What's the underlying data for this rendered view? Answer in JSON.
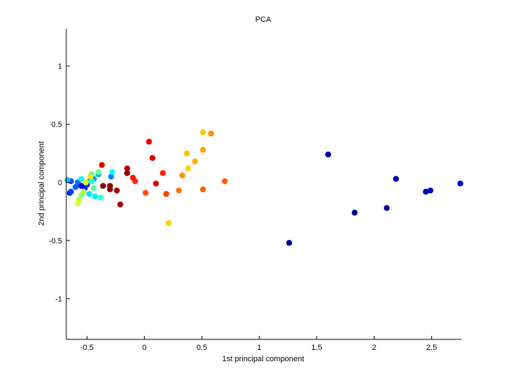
{
  "chart_data": {
    "type": "scatter",
    "title": "PCA",
    "xlabel": "1st principal component",
    "ylabel": "2nd principal component",
    "xlim": [
      -0.68,
      2.76
    ],
    "ylim": [
      -1.35,
      1.32
    ],
    "xticks": [
      -0.5,
      0,
      0.5,
      1,
      1.5,
      2,
      2.5
    ],
    "xtick_labels": [
      "-0.5",
      "0",
      "0.5",
      "1",
      "1.5",
      "2",
      "2.5"
    ],
    "yticks": [
      -1,
      -0.5,
      0,
      0.5,
      1
    ],
    "ytick_labels": [
      "-1",
      "-0.5",
      "0",
      "0.5",
      "1"
    ],
    "grid": false,
    "legend": "none",
    "points": [
      {
        "x": 1.26,
        "y": -0.52,
        "color": "#00009a"
      },
      {
        "x": 1.6,
        "y": 0.24,
        "color": "#00009a"
      },
      {
        "x": 1.83,
        "y": -0.26,
        "color": "#00009a"
      },
      {
        "x": 2.11,
        "y": -0.22,
        "color": "#00009a"
      },
      {
        "x": 2.19,
        "y": 0.03,
        "color": "#0000aa"
      },
      {
        "x": 2.45,
        "y": -0.08,
        "color": "#0000bb"
      },
      {
        "x": 2.49,
        "y": -0.07,
        "color": "#0000bb"
      },
      {
        "x": 2.75,
        "y": -0.01,
        "color": "#0000cc"
      },
      {
        "x": -0.65,
        "y": -0.09,
        "color": "#0020ff"
      },
      {
        "x": -0.64,
        "y": -0.08,
        "color": "#0040ff"
      },
      {
        "x": -0.64,
        "y": 0.01,
        "color": "#0050ff"
      },
      {
        "x": -0.6,
        "y": -0.04,
        "color": "#0060ff"
      },
      {
        "x": -0.58,
        "y": 0.0,
        "color": "#0070ff"
      },
      {
        "x": -0.55,
        "y": -0.03,
        "color": "#0000dd"
      },
      {
        "x": -0.52,
        "y": -0.05,
        "color": "#0000ee"
      },
      {
        "x": -0.5,
        "y": -0.02,
        "color": "#0030ff"
      },
      {
        "x": -0.47,
        "y": 0.02,
        "color": "#0090ff"
      },
      {
        "x": -0.44,
        "y": 0.03,
        "color": "#00a0ff"
      },
      {
        "x": -0.4,
        "y": 0.07,
        "color": "#00b0ff"
      },
      {
        "x": -0.29,
        "y": 0.05,
        "color": "#0080ff"
      },
      {
        "x": -0.67,
        "y": 0.02,
        "color": "#00d0ff"
      },
      {
        "x": -0.55,
        "y": 0.03,
        "color": "#10ffef"
      },
      {
        "x": -0.48,
        "y": -0.1,
        "color": "#00e0ff"
      },
      {
        "x": -0.46,
        "y": 0.01,
        "color": "#20ffdf"
      },
      {
        "x": -0.43,
        "y": -0.12,
        "color": "#00f0ff"
      },
      {
        "x": -0.38,
        "y": -0.13,
        "color": "#30ffcf"
      },
      {
        "x": -0.28,
        "y": 0.09,
        "color": "#00ffff"
      },
      {
        "x": -0.46,
        "y": 0.07,
        "color": "#50ffaf"
      },
      {
        "x": -0.44,
        "y": -0.05,
        "color": "#60ff9f"
      },
      {
        "x": -0.4,
        "y": 0.09,
        "color": "#70ff8f"
      },
      {
        "x": -0.55,
        "y": -0.11,
        "color": "#90ff6f"
      },
      {
        "x": -0.53,
        "y": -0.08,
        "color": "#b0ff4f"
      },
      {
        "x": -0.57,
        "y": -0.15,
        "color": "#c0ff3f"
      },
      {
        "x": -0.58,
        "y": -0.18,
        "color": "#d0ff2f"
      },
      {
        "x": -0.51,
        "y": 0.0,
        "color": "#e0ff1f"
      },
      {
        "x": -0.47,
        "y": 0.05,
        "color": "#ffe000"
      },
      {
        "x": 0.21,
        "y": -0.35,
        "color": "#ffd000"
      },
      {
        "x": 0.38,
        "y": 0.12,
        "color": "#ffd000"
      },
      {
        "x": 0.37,
        "y": 0.25,
        "color": "#ffc000"
      },
      {
        "x": 0.44,
        "y": 0.18,
        "color": "#ffb000"
      },
      {
        "x": 0.51,
        "y": 0.43,
        "color": "#ffc800"
      },
      {
        "x": 0.51,
        "y": 0.28,
        "color": "#ffa000"
      },
      {
        "x": 0.58,
        "y": 0.42,
        "color": "#ff9000"
      },
      {
        "x": 0.33,
        "y": 0.06,
        "color": "#ff9000"
      },
      {
        "x": 0.3,
        "y": -0.07,
        "color": "#ff7000"
      },
      {
        "x": 0.51,
        "y": -0.06,
        "color": "#ff6000"
      },
      {
        "x": 0.7,
        "y": 0.01,
        "color": "#ff6000"
      },
      {
        "x": 0.01,
        "y": -0.09,
        "color": "#ff5000"
      },
      {
        "x": 0.19,
        "y": -0.1,
        "color": "#ff4000"
      },
      {
        "x": 0.16,
        "y": 0.08,
        "color": "#ff2000"
      },
      {
        "x": -0.08,
        "y": 0.01,
        "color": "#ff3000"
      },
      {
        "x": -0.1,
        "y": 0.04,
        "color": "#ff1000"
      },
      {
        "x": 0.04,
        "y": 0.35,
        "color": "#ee0000"
      },
      {
        "x": 0.07,
        "y": 0.21,
        "color": "#e00000"
      },
      {
        "x": 0.1,
        "y": -0.01,
        "color": "#e00000"
      },
      {
        "x": -0.37,
        "y": 0.15,
        "color": "#e00000"
      },
      {
        "x": -0.36,
        "y": -0.03,
        "color": "#8a0000"
      },
      {
        "x": -0.3,
        "y": -0.03,
        "color": "#900000"
      },
      {
        "x": -0.3,
        "y": -0.06,
        "color": "#880000"
      },
      {
        "x": -0.24,
        "y": -0.07,
        "color": "#a00000"
      },
      {
        "x": -0.21,
        "y": -0.19,
        "color": "#a80000"
      },
      {
        "x": -0.15,
        "y": 0.08,
        "color": "#900000"
      },
      {
        "x": -0.15,
        "y": 0.12,
        "color": "#b00000"
      }
    ]
  }
}
